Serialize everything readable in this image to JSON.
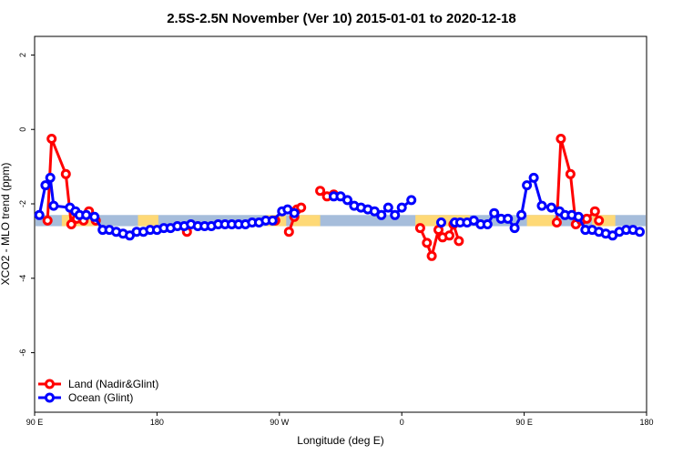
{
  "chart_data": {
    "type": "line",
    "title": "2.5S-2.5N November (Ver 10)   2015-01-01 to 2020-12-18",
    "xlabel": "Longitude (deg E)",
    "ylabel": "XCO2 - MLO trend (ppm)",
    "xlim": [
      90,
      540
    ],
    "ylim": [
      -7.6,
      2.5
    ],
    "x_ticks": [
      {
        "value": 90,
        "label": "90 E"
      },
      {
        "value": 180,
        "label": "180"
      },
      {
        "value": 270,
        "label": "90 W"
      },
      {
        "value": 360,
        "label": "0"
      },
      {
        "value": 450,
        "label": "90 E"
      },
      {
        "value": 540,
        "label": "180"
      }
    ],
    "y_ticks": [
      {
        "value": 2,
        "label": "2"
      },
      {
        "value": 0,
        "label": "0"
      },
      {
        "value": -2,
        "label": "-2"
      },
      {
        "value": -4,
        "label": "-4"
      },
      {
        "value": -6,
        "label": "-6"
      }
    ],
    "background_band": {
      "y_from": -2.3,
      "y_to": -2.6,
      "ocean_color": "#a6bddb",
      "land_color": "#fed976"
    },
    "land_segments": [
      [
        110,
        137
      ],
      [
        166,
        181
      ],
      [
        260,
        275
      ],
      [
        280,
        300
      ],
      [
        370,
        410
      ],
      [
        452,
        472
      ],
      [
        500,
        517
      ]
    ],
    "legend": {
      "position": "bottom-left"
    },
    "series": [
      {
        "name": "Land (Nadir&Glint)",
        "color": "#ff0000",
        "segments": [
          [
            [
              99.5,
              -2.45
            ],
            [
              102.5,
              -0.25
            ],
            [
              113,
              -1.2
            ],
            [
              117,
              -2.55
            ],
            [
              121,
              -2.4
            ],
            [
              126,
              -2.45
            ],
            [
              130,
              -2.2
            ],
            [
              135,
              -2.45
            ]
          ],
          [
            [
              202,
              -2.75
            ]
          ],
          [
            [
              267,
              -2.45
            ]
          ],
          [
            [
              277,
              -2.75
            ],
            [
              281,
              -2.35
            ],
            [
              283,
              -2.15
            ],
            [
              286,
              -2.1
            ]
          ],
          [
            [
              300,
              -1.65
            ],
            [
              305,
              -1.8
            ],
            [
              310,
              -1.75
            ]
          ],
          [
            [
              373.5,
              -2.65
            ],
            [
              378.5,
              -3.05
            ],
            [
              382,
              -3.4
            ],
            [
              387,
              -2.7
            ],
            [
              390,
              -2.9
            ],
            [
              395,
              -2.85
            ],
            [
              398,
              -2.55
            ],
            [
              402,
              -3.0
            ]
          ],
          [
            [
              474,
              -2.5
            ],
            [
              477,
              -0.25
            ],
            [
              484,
              -1.2
            ],
            [
              488,
              -2.55
            ],
            [
              492,
              -2.45
            ],
            [
              496,
              -2.4
            ],
            [
              502,
              -2.2
            ],
            [
              505,
              -2.45
            ]
          ]
        ]
      },
      {
        "name": "Ocean (Glint)",
        "color": "#0000ff",
        "segments": [
          [
            [
              93.5,
              -2.3
            ],
            [
              98,
              -1.5
            ],
            [
              101.5,
              -1.3
            ],
            [
              104,
              -2.05
            ],
            [
              116,
              -2.1
            ],
            [
              120,
              -2.2
            ],
            [
              123,
              -2.3
            ],
            [
              128,
              -2.3
            ],
            [
              134,
              -2.35
            ],
            [
              140,
              -2.7
            ],
            [
              145,
              -2.7
            ],
            [
              150,
              -2.75
            ],
            [
              155,
              -2.8
            ],
            [
              160,
              -2.85
            ],
            [
              165,
              -2.75
            ],
            [
              170,
              -2.75
            ],
            [
              175,
              -2.7
            ],
            [
              180,
              -2.7
            ],
            [
              185,
              -2.65
            ],
            [
              190,
              -2.65
            ],
            [
              195,
              -2.6
            ],
            [
              200,
              -2.6
            ],
            [
              205,
              -2.55
            ],
            [
              210,
              -2.6
            ],
            [
              215,
              -2.6
            ],
            [
              220,
              -2.6
            ],
            [
              225,
              -2.55
            ],
            [
              230,
              -2.55
            ],
            [
              235,
              -2.55
            ],
            [
              240,
              -2.55
            ],
            [
              245,
              -2.55
            ],
            [
              250,
              -2.5
            ],
            [
              255,
              -2.5
            ],
            [
              260,
              -2.45
            ],
            [
              265,
              -2.45
            ],
            [
              272,
              -2.2
            ],
            [
              276,
              -2.15
            ],
            [
              281,
              -2.25
            ]
          ],
          [
            [
              310,
              -1.8
            ],
            [
              315,
              -1.8
            ],
            [
              320,
              -1.9
            ],
            [
              325,
              -2.05
            ],
            [
              330,
              -2.1
            ],
            [
              335,
              -2.15
            ],
            [
              340,
              -2.2
            ],
            [
              345,
              -2.3
            ],
            [
              350,
              -2.1
            ],
            [
              355,
              -2.3
            ],
            [
              360,
              -2.1
            ],
            [
              367,
              -1.9
            ]
          ],
          [
            [
              389,
              -2.5
            ]
          ],
          [
            [
              399,
              -2.5
            ],
            [
              403,
              -2.5
            ],
            [
              408,
              -2.5
            ],
            [
              413,
              -2.45
            ],
            [
              418,
              -2.55
            ],
            [
              423,
              -2.55
            ],
            [
              428,
              -2.25
            ],
            [
              433,
              -2.4
            ],
            [
              438,
              -2.4
            ],
            [
              443,
              -2.65
            ],
            [
              448,
              -2.3
            ],
            [
              452,
              -1.5
            ],
            [
              457,
              -1.3
            ],
            [
              463,
              -2.05
            ],
            [
              470,
              -2.1
            ],
            [
              476,
              -2.2
            ],
            [
              480,
              -2.3
            ],
            [
              485,
              -2.3
            ],
            [
              490,
              -2.35
            ],
            [
              495,
              -2.7
            ],
            [
              500,
              -2.7
            ],
            [
              505,
              -2.75
            ],
            [
              510,
              -2.8
            ],
            [
              515,
              -2.85
            ],
            [
              520,
              -2.75
            ],
            [
              525,
              -2.7
            ],
            [
              530,
              -2.7
            ],
            [
              535,
              -2.75
            ]
          ]
        ]
      }
    ]
  }
}
